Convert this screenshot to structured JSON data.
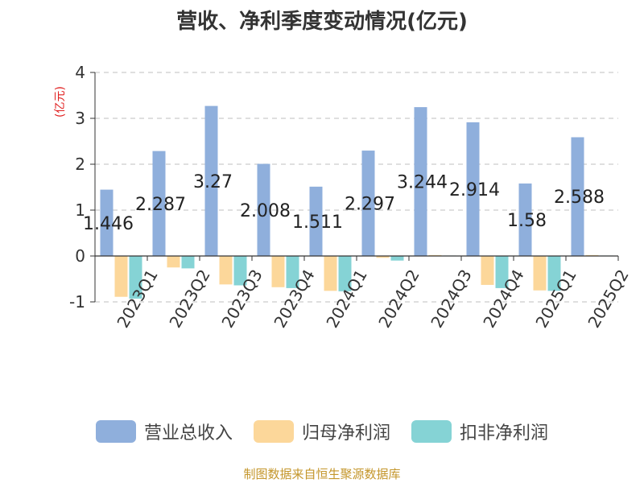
{
  "title": "营收、净利季度变动情况(亿元)",
  "y_unit": "(亿元)",
  "source": "制图数据来自恒生聚源数据库",
  "colors": {
    "revenue": "#8fafdc",
    "net_profit": "#fcd79a",
    "non_recurring_profit": "#85d3d5",
    "grid": "#cccccc",
    "axis": "#333333"
  },
  "chart_data": {
    "type": "bar",
    "title": "营收、净利季度变动情况(亿元)",
    "ylabel": "(亿元)",
    "xlabel": "",
    "ylim": [
      -1,
      4
    ],
    "yticks": [
      -1,
      0,
      1,
      2,
      3,
      4
    ],
    "grid": true,
    "legend_position": "bottom",
    "categories": [
      "2023Q1",
      "2023Q2",
      "2023Q3",
      "2023Q4",
      "2024Q1",
      "2024Q2",
      "2024Q3",
      "2024Q4",
      "2025Q1",
      "2025Q2"
    ],
    "series": [
      {
        "name": "营业总收入",
        "color_key": "revenue",
        "values": [
          1.446,
          2.287,
          3.27,
          2.008,
          1.511,
          2.297,
          3.244,
          2.914,
          1.58,
          2.588
        ],
        "labels": [
          "1.446",
          "2.287",
          "3.27",
          "2.008",
          "1.511",
          "2.297",
          "3.244",
          "2.914",
          "1.58",
          "2.588"
        ]
      },
      {
        "name": "归母净利润",
        "color_key": "net_profit",
        "values": [
          -0.89,
          -0.25,
          -0.62,
          -0.68,
          -0.76,
          -0.04,
          0.02,
          -0.63,
          -0.75,
          0.02
        ]
      },
      {
        "name": "扣非净利润",
        "color_key": "non_recurring_profit",
        "values": [
          -0.93,
          -0.27,
          -0.64,
          -0.7,
          -0.77,
          -0.1,
          0.01,
          -0.7,
          -0.76,
          0.01
        ]
      }
    ]
  }
}
